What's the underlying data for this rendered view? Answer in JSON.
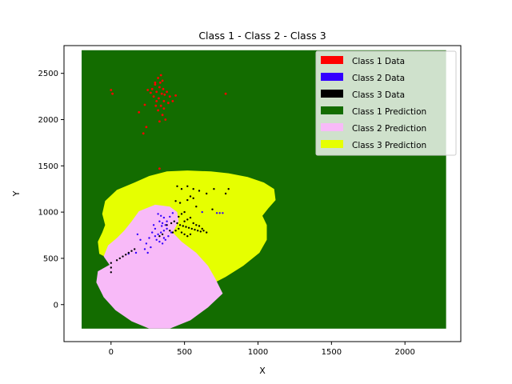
{
  "chart_data": {
    "type": "scatter",
    "title": "Class 1 - Class 2 - Class 3",
    "xlabel": "X",
    "ylabel": "Y",
    "xlim": [
      -320,
      2380
    ],
    "ylim": [
      -400,
      2800
    ],
    "xticks": [
      0,
      500,
      1000,
      1500,
      2000
    ],
    "yticks": [
      0,
      500,
      1000,
      1500,
      2000,
      2500
    ],
    "grid": false,
    "legend_position": "top-right",
    "prediction_region": {
      "x_range": [
        -200,
        2280
      ],
      "y_range": [
        -260,
        2750
      ]
    },
    "series": [
      {
        "name": "Class 1 Data",
        "color": "#ff0000",
        "kind": "points",
        "points": [
          [
            300,
            2400
          ],
          [
            320,
            2450
          ],
          [
            340,
            2480
          ],
          [
            350,
            2420
          ],
          [
            330,
            2350
          ],
          [
            310,
            2300
          ],
          [
            290,
            2250
          ],
          [
            360,
            2200
          ],
          [
            340,
            2150
          ],
          [
            320,
            2100
          ],
          [
            350,
            2050
          ],
          [
            370,
            2000
          ],
          [
            330,
            1980
          ],
          [
            300,
            2380
          ],
          [
            280,
            2330
          ],
          [
            380,
            2300
          ],
          [
            400,
            2250
          ],
          [
            390,
            2180
          ],
          [
            360,
            2120
          ],
          [
            310,
            2200
          ],
          [
            270,
            2290
          ],
          [
            250,
            2320
          ],
          [
            420,
            2200
          ],
          [
            440,
            2260
          ],
          [
            230,
            2160
          ],
          [
            190,
            2080
          ],
          [
            240,
            1920
          ],
          [
            220,
            1850
          ],
          [
            0,
            2320
          ],
          [
            10,
            2280
          ],
          [
            780,
            2280
          ],
          [
            330,
            1470
          ],
          [
            345,
            2280
          ],
          [
            325,
            2230
          ],
          [
            355,
            2330
          ],
          [
            305,
            2150
          ],
          [
            365,
            2270
          ],
          [
            335,
            2400
          ]
        ]
      },
      {
        "name": "Class 2 Data",
        "color": "#3300ff",
        "kind": "points",
        "points": [
          [
            320,
            980
          ],
          [
            340,
            960
          ],
          [
            360,
            940
          ],
          [
            330,
            900
          ],
          [
            350,
            880
          ],
          [
            370,
            860
          ],
          [
            380,
            820
          ],
          [
            360,
            800
          ],
          [
            340,
            780
          ],
          [
            320,
            760
          ],
          [
            300,
            740
          ],
          [
            310,
            700
          ],
          [
            330,
            680
          ],
          [
            350,
            660
          ],
          [
            370,
            700
          ],
          [
            390,
            740
          ],
          [
            410,
            780
          ],
          [
            380,
            900
          ],
          [
            400,
            950
          ],
          [
            420,
            990
          ],
          [
            300,
            820
          ],
          [
            280,
            780
          ],
          [
            260,
            720
          ],
          [
            240,
            660
          ],
          [
            230,
            600
          ],
          [
            250,
            560
          ],
          [
            270,
            620
          ],
          [
            290,
            860
          ],
          [
            180,
            760
          ],
          [
            200,
            700
          ],
          [
            170,
            560
          ],
          [
            720,
            990
          ],
          [
            740,
            990
          ],
          [
            760,
            990
          ],
          [
            620,
            1000
          ],
          [
            120,
            550
          ],
          [
            360,
            720
          ],
          [
            345,
            850
          ]
        ]
      },
      {
        "name": "Class 3 Data",
        "color": "#000000",
        "kind": "points",
        "points": [
          [
            430,
            900
          ],
          [
            450,
            880
          ],
          [
            470,
            860
          ],
          [
            490,
            850
          ],
          [
            510,
            840
          ],
          [
            530,
            830
          ],
          [
            550,
            820
          ],
          [
            570,
            810
          ],
          [
            590,
            800
          ],
          [
            610,
            790
          ],
          [
            500,
            900
          ],
          [
            520,
            920
          ],
          [
            540,
            940
          ],
          [
            560,
            880
          ],
          [
            580,
            860
          ],
          [
            460,
            820
          ],
          [
            440,
            800
          ],
          [
            420,
            780
          ],
          [
            480,
            780
          ],
          [
            500,
            760
          ],
          [
            520,
            740
          ],
          [
            540,
            760
          ],
          [
            600,
            850
          ],
          [
            620,
            820
          ],
          [
            460,
            950
          ],
          [
            480,
            980
          ],
          [
            500,
            1000
          ],
          [
            450,
            1280
          ],
          [
            480,
            1250
          ],
          [
            520,
            1280
          ],
          [
            560,
            1250
          ],
          [
            600,
            1230
          ],
          [
            650,
            1200
          ],
          [
            700,
            1250
          ],
          [
            780,
            1200
          ],
          [
            800,
            1250
          ],
          [
            540,
            1170
          ],
          [
            560,
            1150
          ],
          [
            520,
            1130
          ],
          [
            580,
            1060
          ],
          [
            0,
            450
          ],
          [
            0,
            400
          ],
          [
            0,
            350
          ],
          [
            60,
            500
          ],
          [
            80,
            520
          ],
          [
            100,
            540
          ],
          [
            120,
            560
          ],
          [
            140,
            580
          ],
          [
            160,
            600
          ],
          [
            40,
            480
          ],
          [
            330,
            740
          ],
          [
            350,
            760
          ],
          [
            400,
            800
          ],
          [
            380,
            860
          ],
          [
            410,
            880
          ],
          [
            630,
            800
          ],
          [
            650,
            780
          ],
          [
            440,
            1120
          ],
          [
            470,
            1100
          ],
          [
            690,
            1030
          ]
        ]
      }
    ],
    "prediction_classes": [
      {
        "name": "Class 1 Prediction",
        "color": "#136c00"
      },
      {
        "name": "Class 2 Prediction",
        "color": "#f8baf8"
      },
      {
        "name": "Class 3 Prediction",
        "color": "#e6ff00"
      }
    ]
  }
}
